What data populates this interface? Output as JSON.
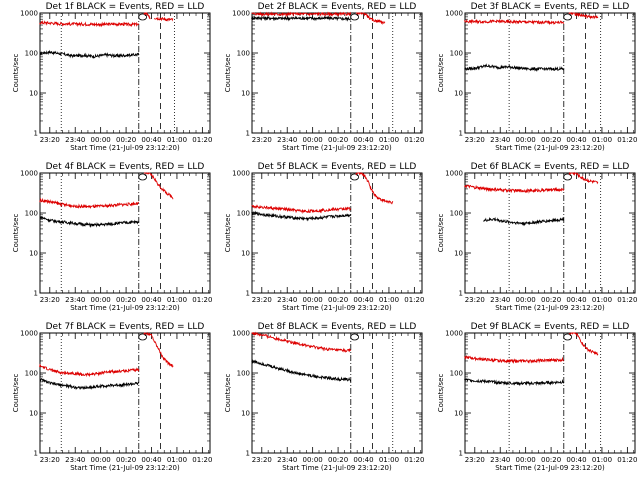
{
  "chart_data": [
    {
      "type": "line",
      "title": "Det 1f BLACK = Events, RED = LLD",
      "xlabel": "Start Time (21-Jul-09 23:12:20)",
      "ylabel": "Counts/sec",
      "yscale": "log",
      "ylim": [
        1,
        1000
      ],
      "x_tick_labels": [
        "23:20",
        "23:40",
        "00:00",
        "00:20",
        "00:40",
        "01:00",
        "01:20"
      ],
      "y_tick_labels": [
        "1",
        "10",
        "100",
        "1000"
      ],
      "series": [
        {
          "color": "#000000",
          "start": "23:12",
          "end": "00:30",
          "values": [
            100,
            105,
            95,
            85,
            88,
            82,
            90,
            85,
            88,
            92
          ]
        },
        {
          "color": "#dd0000",
          "start": "23:12",
          "end": "00:30",
          "values": [
            580,
            560,
            540,
            530,
            530,
            520,
            520,
            530,
            520,
            520
          ]
        },
        {
          "color": "#dd0000",
          "start": "00:34",
          "end": "00:39",
          "values": [
            1000,
            1000,
            960,
            820,
            750
          ]
        },
        {
          "color": "#dd0000",
          "start": "00:42",
          "end": "00:57",
          "values": [
            760,
            740,
            720,
            700,
            690,
            680
          ]
        }
      ],
      "event_lines": [
        {
          "time": "23:29",
          "style": "dotted"
        },
        {
          "time": "00:30",
          "style": "dashdot"
        },
        {
          "time": "00:47",
          "style": "dashed"
        },
        {
          "time": "00:58",
          "style": "dotted"
        }
      ],
      "marker_time": "00:33"
    },
    {
      "type": "line",
      "title": "Det 2f BLACK = Events, RED = LLD",
      "xlabel": "Start Time (21-Jul-09 23:12:20)",
      "ylabel": "Counts/sec",
      "yscale": "log",
      "ylim": [
        1,
        1000
      ],
      "x_tick_labels": [
        "23:20",
        "23:40",
        "00:00",
        "00:20",
        "00:40",
        "01:00",
        "01:20"
      ],
      "y_tick_labels": [
        "1",
        "10",
        "100",
        "1000"
      ],
      "series": [
        {
          "color": "#000000",
          "start": "23:12",
          "end": "00:30",
          "values": [
            760,
            750,
            740,
            730,
            740,
            740,
            730,
            750,
            720,
            720
          ]
        },
        {
          "color": "#dd0000",
          "start": "23:12",
          "end": "00:30",
          "values": [
            960,
            950,
            940,
            930,
            960,
            940,
            950,
            940,
            930,
            960
          ]
        },
        {
          "color": "#dd0000",
          "start": "00:34",
          "end": "00:57",
          "values": [
            1000,
            1000,
            1000,
            900,
            700,
            650,
            640,
            600,
            560
          ]
        }
      ],
      "event_lines": [
        {
          "time": "00:30",
          "style": "dashdot"
        },
        {
          "time": "00:47",
          "style": "dashed"
        },
        {
          "time": "01:03",
          "style": "dotted"
        }
      ],
      "marker_time": "00:33"
    },
    {
      "type": "line",
      "title": "Det 3f BLACK = Events, RED = LLD",
      "xlabel": "Start Time (21-Jul-09 23:12:20)",
      "ylabel": "Counts/sec",
      "yscale": "log",
      "ylim": [
        1,
        1000
      ],
      "x_tick_labels": [
        "23:20",
        "23:40",
        "00:00",
        "00:20",
        "00:40",
        "01:00",
        "01:20"
      ],
      "y_tick_labels": [
        "1",
        "10",
        "100",
        "1000"
      ],
      "series": [
        {
          "color": "#000000",
          "start": "23:12",
          "end": "00:30",
          "values": [
            40,
            42,
            48,
            44,
            45,
            42,
            40,
            40,
            40,
            40
          ]
        },
        {
          "color": "#dd0000",
          "start": "23:12",
          "end": "00:30",
          "values": [
            620,
            610,
            610,
            620,
            600,
            600,
            590,
            590,
            580,
            580
          ]
        },
        {
          "color": "#dd0000",
          "start": "00:34",
          "end": "00:57",
          "values": [
            1000,
            1000,
            940,
            900,
            860,
            820,
            800,
            790,
            770
          ]
        }
      ],
      "event_lines": [
        {
          "time": "23:47",
          "style": "dotted"
        },
        {
          "time": "00:30",
          "style": "dashdot"
        },
        {
          "time": "00:47",
          "style": "dashed"
        },
        {
          "time": "00:59",
          "style": "dotted"
        }
      ],
      "marker_time": "00:33"
    },
    {
      "type": "line",
      "title": "Det 4f BLACK = Events, RED = LLD",
      "xlabel": "Start Time (21-Jul-09 23:12:20)",
      "ylabel": "Counts/sec",
      "yscale": "log",
      "ylim": [
        1,
        1000
      ],
      "x_tick_labels": [
        "23:20",
        "23:40",
        "00:00",
        "00:20",
        "00:40",
        "01:00",
        "01:20"
      ],
      "y_tick_labels": [
        "1",
        "10",
        "100",
        "1000"
      ],
      "series": [
        {
          "color": "#000000",
          "start": "23:12",
          "end": "00:30",
          "values": [
            80,
            65,
            60,
            56,
            52,
            50,
            52,
            55,
            58,
            60
          ]
        },
        {
          "color": "#dd0000",
          "start": "23:12",
          "end": "00:30",
          "values": [
            210,
            190,
            165,
            150,
            145,
            145,
            150,
            160,
            165,
            175
          ]
        },
        {
          "color": "#dd0000",
          "start": "00:34",
          "end": "00:57",
          "values": [
            1000,
            1000,
            900,
            700,
            500,
            400,
            330,
            280,
            240
          ]
        }
      ],
      "event_lines": [
        {
          "time": "23:29",
          "style": "dotted"
        },
        {
          "time": "00:30",
          "style": "dashdot"
        },
        {
          "time": "00:47",
          "style": "dashed"
        }
      ],
      "marker_time": "00:33"
    },
    {
      "type": "line",
      "title": "Det 5f BLACK = Events, RED = LLD",
      "xlabel": "Start Time (21-Jul-09 23:12:20)",
      "ylabel": "Counts/sec",
      "yscale": "log",
      "ylim": [
        1,
        1000
      ],
      "x_tick_labels": [
        "23:20",
        "23:40",
        "00:00",
        "00:20",
        "00:40",
        "01:00",
        "01:20"
      ],
      "y_tick_labels": [
        "1",
        "10",
        "100",
        "1000"
      ],
      "series": [
        {
          "color": "#000000",
          "start": "23:12",
          "end": "00:30",
          "values": [
            100,
            92,
            85,
            80,
            75,
            72,
            75,
            80,
            85,
            90
          ]
        },
        {
          "color": "#dd0000",
          "start": "23:12",
          "end": "00:30",
          "values": [
            150,
            140,
            130,
            125,
            115,
            110,
            115,
            120,
            125,
            130
          ]
        },
        {
          "color": "#dd0000",
          "start": "00:34",
          "end": "01:03",
          "values": [
            1000,
            1000,
            900,
            600,
            350,
            260,
            220,
            200,
            190,
            185
          ]
        }
      ],
      "event_lines": [
        {
          "time": "00:30",
          "style": "dashdot"
        },
        {
          "time": "00:47",
          "style": "dashed"
        }
      ],
      "marker_time": "00:33"
    },
    {
      "type": "line",
      "title": "Det 6f BLACK = Events, RED = LLD",
      "xlabel": "Start Time (21-Jul-09 23:12:20)",
      "ylabel": "Counts/sec",
      "yscale": "log",
      "ylim": [
        1,
        1000
      ],
      "x_tick_labels": [
        "23:20",
        "23:40",
        "00:00",
        "00:20",
        "00:40",
        "01:00",
        "01:20"
      ],
      "y_tick_labels": [
        "1",
        "10",
        "100",
        "1000"
      ],
      "series": [
        {
          "color": "#000000",
          "start": "23:27",
          "end": "00:30",
          "values": [
            65,
            70,
            62,
            58,
            55,
            58,
            62,
            66,
            70
          ]
        },
        {
          "color": "#dd0000",
          "start": "23:12",
          "end": "00:30",
          "values": [
            480,
            430,
            400,
            380,
            370,
            360,
            360,
            370,
            380,
            385
          ]
        },
        {
          "color": "#dd0000",
          "start": "00:34",
          "end": "00:57",
          "values": [
            1000,
            1000,
            980,
            820,
            720,
            660,
            620,
            600,
            560
          ]
        }
      ],
      "event_lines": [
        {
          "time": "23:47",
          "style": "dotted"
        },
        {
          "time": "00:30",
          "style": "dashdot"
        },
        {
          "time": "00:47",
          "style": "dashed"
        },
        {
          "time": "00:59",
          "style": "dotted"
        }
      ],
      "marker_time": "00:33"
    },
    {
      "type": "line",
      "title": "Det 7f BLACK = Events, RED = LLD",
      "xlabel": "Start Time (21-Jul-09 23:12:20)",
      "ylabel": "Counts/sec",
      "yscale": "log",
      "ylim": [
        1,
        1000
      ],
      "x_tick_labels": [
        "23:20",
        "23:40",
        "00:00",
        "00:20",
        "00:40",
        "01:00",
        "01:20"
      ],
      "y_tick_labels": [
        "1",
        "10",
        "100",
        "1000"
      ],
      "series": [
        {
          "color": "#000000",
          "start": "23:12",
          "end": "00:30",
          "values": [
            70,
            55,
            50,
            45,
            42,
            45,
            48,
            50,
            52,
            55
          ]
        },
        {
          "color": "#dd0000",
          "start": "23:12",
          "end": "00:30",
          "values": [
            150,
            120,
            100,
            100,
            90,
            95,
            105,
            110,
            115,
            120
          ]
        },
        {
          "color": "#dd0000",
          "start": "00:34",
          "end": "00:57",
          "values": [
            1000,
            1000,
            900,
            600,
            400,
            260,
            200,
            170,
            150
          ]
        }
      ],
      "event_lines": [
        {
          "time": "23:29",
          "style": "dotted"
        },
        {
          "time": "00:30",
          "style": "dashdot"
        },
        {
          "time": "00:47",
          "style": "dashed"
        }
      ],
      "marker_time": "00:33"
    },
    {
      "type": "line",
      "title": "Det 8f BLACK = Events, RED = LLD",
      "xlabel": "Start Time (21-Jul-09 23:12:20)",
      "ylabel": "Counts/sec",
      "yscale": "log",
      "ylim": [
        1,
        1000
      ],
      "x_tick_labels": [
        "23:20",
        "23:40",
        "00:00",
        "00:20",
        "00:40",
        "01:00",
        "01:20"
      ],
      "y_tick_labels": [
        "1",
        "10",
        "100",
        "1000"
      ],
      "series": [
        {
          "color": "#000000",
          "start": "23:12",
          "end": "00:30",
          "values": [
            200,
            170,
            140,
            120,
            100,
            90,
            80,
            75,
            70,
            68
          ]
        },
        {
          "color": "#dd0000",
          "start": "23:12",
          "end": "00:30",
          "values": [
            1000,
            880,
            760,
            650,
            560,
            480,
            430,
            390,
            370,
            360
          ]
        }
      ],
      "event_lines": [
        {
          "time": "00:30",
          "style": "dashdot"
        },
        {
          "time": "00:47",
          "style": "dashed"
        },
        {
          "time": "01:03",
          "style": "dotted"
        }
      ],
      "marker_time": "00:33"
    },
    {
      "type": "line",
      "title": "Det 9f BLACK = Events, RED = LLD",
      "xlabel": "Start Time (21-Jul-09 23:12:20)",
      "ylabel": "Counts/sec",
      "yscale": "log",
      "ylim": [
        1,
        1000
      ],
      "x_tick_labels": [
        "23:20",
        "23:40",
        "00:00",
        "00:20",
        "00:40",
        "01:00",
        "01:20"
      ],
      "y_tick_labels": [
        "1",
        "10",
        "100",
        "1000"
      ],
      "series": [
        {
          "color": "#000000",
          "start": "23:12",
          "end": "00:30",
          "values": [
            68,
            64,
            62,
            58,
            56,
            55,
            55,
            56,
            58,
            60
          ]
        },
        {
          "color": "#dd0000",
          "start": "23:12",
          "end": "00:30",
          "values": [
            250,
            230,
            215,
            205,
            200,
            200,
            200,
            205,
            210,
            215
          ]
        },
        {
          "color": "#dd0000",
          "start": "00:34",
          "end": "00:57",
          "values": [
            1000,
            1000,
            1000,
            700,
            500,
            400,
            350,
            320,
            290
          ]
        }
      ],
      "event_lines": [
        {
          "time": "23:47",
          "style": "dotted"
        },
        {
          "time": "00:30",
          "style": "dashdot"
        },
        {
          "time": "00:47",
          "style": "dashed"
        },
        {
          "time": "00:59",
          "style": "dotted"
        }
      ],
      "marker_time": "00:33"
    }
  ]
}
